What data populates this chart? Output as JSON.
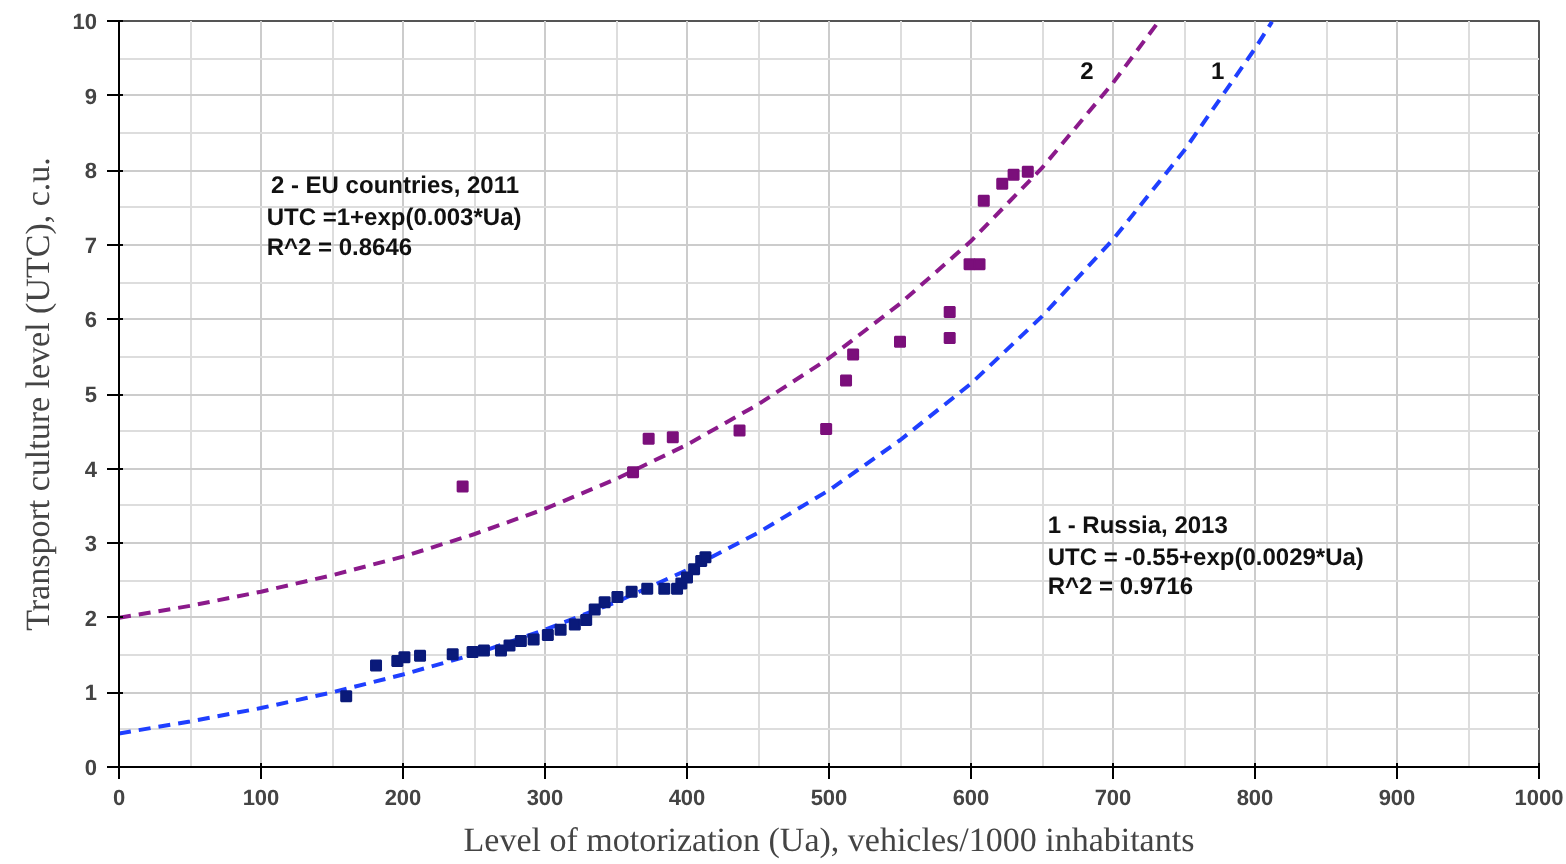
{
  "chart_data": {
    "type": "scatter",
    "xlabel": "Level of motorization (Ua), vehicles/1000 inhabitants",
    "ylabel": "Transport culture level (UTC), c.u.",
    "xlim": [
      0,
      1000
    ],
    "ylim": [
      0,
      10
    ],
    "xticks": [
      0,
      100,
      200,
      300,
      400,
      500,
      600,
      700,
      800,
      900,
      1000
    ],
    "yticks": [
      0,
      1,
      2,
      3,
      4,
      5,
      6,
      7,
      8,
      9,
      10
    ],
    "grid": true,
    "series": [
      {
        "marker": "square",
        "color": "#7b0f7b",
        "x": [
          242,
          362,
          373,
          390,
          437,
          498,
          512,
          517,
          550,
          585,
          585,
          599,
          606,
          609,
          622,
          630,
          640
        ],
        "values": [
          3.76,
          3.95,
          4.4,
          4.42,
          4.51,
          4.53,
          5.18,
          5.53,
          5.7,
          5.75,
          6.1,
          6.74,
          6.74,
          7.59,
          7.82,
          7.94,
          7.98
        ]
      },
      {
        "marker": "square",
        "color": "#0a1a7a",
        "x": [
          160,
          181,
          196,
          201,
          212,
          235,
          249,
          257,
          269,
          275,
          283,
          292,
          302,
          311,
          321,
          329,
          335,
          342,
          351,
          361,
          372,
          384,
          393,
          396,
          400,
          405,
          410,
          413
        ],
        "values": [
          0.95,
          1.36,
          1.42,
          1.47,
          1.49,
          1.51,
          1.54,
          1.56,
          1.56,
          1.63,
          1.69,
          1.71,
          1.77,
          1.84,
          1.91,
          1.97,
          2.11,
          2.21,
          2.28,
          2.35,
          2.39,
          2.39,
          2.39,
          2.46,
          2.54,
          2.65,
          2.76,
          2.81
        ]
      },
      {
        "type": "line",
        "line_style": "dashed",
        "marker": "none",
        "color": "#8b1a8b",
        "x": [
          0,
          50,
          100,
          150,
          200,
          250,
          300,
          350,
          400,
          450,
          500,
          550,
          600,
          650,
          700,
          732
        ],
        "values": [
          2.0,
          2.16,
          2.35,
          2.57,
          2.82,
          3.12,
          3.46,
          3.86,
          4.32,
          4.86,
          5.48,
          6.21,
          7.05,
          8.03,
          9.17,
          9.99
        ]
      },
      {
        "type": "line",
        "line_style": "dashed",
        "marker": "none",
        "color": "#1f3fff",
        "x": [
          0,
          50,
          100,
          150,
          200,
          250,
          300,
          350,
          400,
          450,
          500,
          550,
          600,
          650,
          700,
          750,
          800,
          812
        ],
        "values": [
          0.45,
          0.61,
          0.79,
          1.0,
          1.24,
          1.51,
          1.84,
          2.21,
          2.64,
          3.14,
          3.71,
          4.38,
          5.14,
          6.04,
          7.07,
          8.26,
          9.63,
          9.99
        ]
      }
    ],
    "annotations": [
      "2",
      "1",
      "2 -  EU countries, 2011",
      "UTC =1+exp(0.003*Ua)",
      "R^2 = 0.8646",
      "1 - Russia, 2013",
      "UTC = -0.55+exp(0.0029*Ua)",
      "R^2 = 0.9716"
    ]
  }
}
